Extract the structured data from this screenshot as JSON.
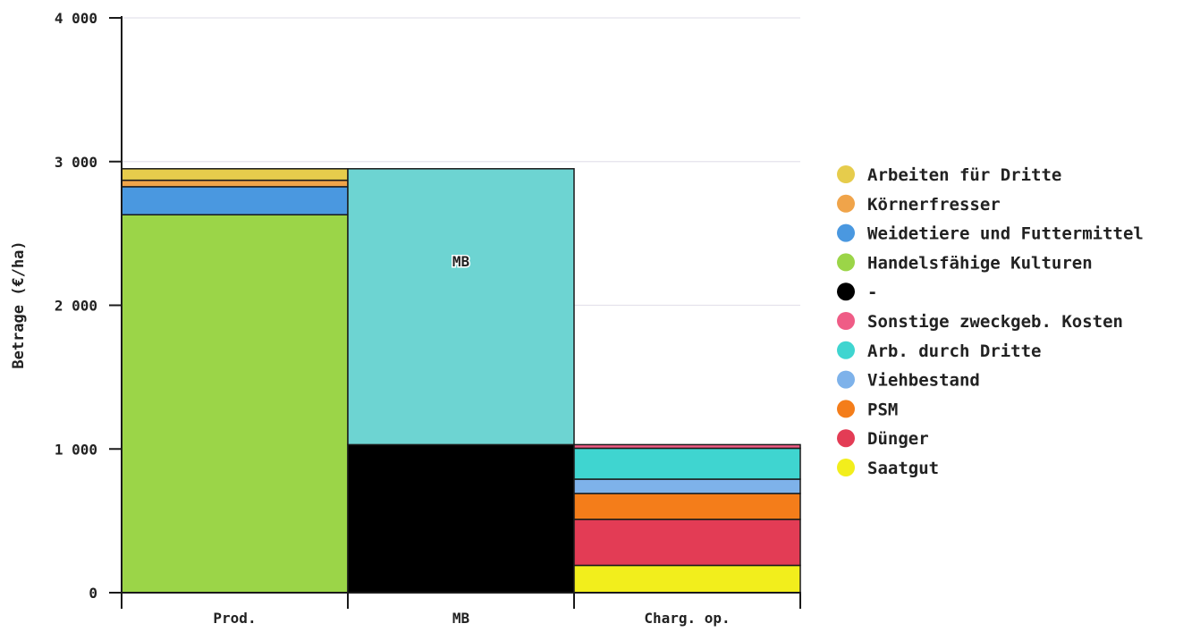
{
  "chart_data": {
    "type": "bar",
    "stacked": true,
    "ylabel": "Betrage (€/ha)",
    "ylim": [
      0,
      4000
    ],
    "yticks": [
      0,
      1000,
      2000,
      3000,
      4000
    ],
    "ytick_labels": [
      "0",
      "1 000",
      "2 000",
      "3 000",
      "4 000"
    ],
    "grid": true,
    "legend_position": "right",
    "categories": [
      "Prod.",
      "MB",
      "Charg. op."
    ],
    "series": [
      {
        "name": "Handelsfähige Kulturen",
        "color": "#9bd548",
        "values": [
          2630,
          0,
          0
        ]
      },
      {
        "name": "Weidetiere und Futtermittel",
        "color": "#4a98e0",
        "values": [
          195,
          0,
          0
        ]
      },
      {
        "name": "Körnerfresser",
        "color": "#f0a44a",
        "values": [
          45,
          0,
          0
        ]
      },
      {
        "name": "Arbeiten für Dritte",
        "color": "#e6cc4c",
        "values": [
          80,
          0,
          0
        ]
      },
      {
        "name": "-",
        "color": "#000000",
        "values": [
          0,
          1030,
          0
        ]
      },
      {
        "name": "",
        "color": "#6dd4d2",
        "values": [
          0,
          1920,
          0
        ],
        "label": "MB"
      },
      {
        "name": "Saatgut",
        "color": "#f2ee1c",
        "values": [
          0,
          0,
          190
        ]
      },
      {
        "name": "Dünger",
        "color": "#e33c55",
        "values": [
          0,
          0,
          320
        ]
      },
      {
        "name": "PSM",
        "color": "#f47d1a",
        "values": [
          0,
          0,
          180
        ]
      },
      {
        "name": "Viehbestand",
        "color": "#7eb2ea",
        "values": [
          0,
          0,
          100
        ]
      },
      {
        "name": "Arb. durch Dritte",
        "color": "#3fd5d0",
        "values": [
          0,
          0,
          215
        ]
      },
      {
        "name": "Sonstige zweckgeb. Kosten",
        "color": "#ef5c86",
        "values": [
          0,
          0,
          25
        ]
      }
    ],
    "legend": [
      {
        "label": "Arbeiten für Dritte",
        "color": "#e6cc4c"
      },
      {
        "label": "Körnerfresser",
        "color": "#f0a44a"
      },
      {
        "label": "Weidetiere und Futtermittel",
        "color": "#4a98e0"
      },
      {
        "label": "Handelsfähige Kulturen",
        "color": "#9bd548"
      },
      {
        "label": "-",
        "color": "#000000"
      },
      {
        "label": "Sonstige zweckgeb. Kosten",
        "color": "#ef5c86"
      },
      {
        "label": "Arb. durch Dritte",
        "color": "#3fd5d0"
      },
      {
        "label": "Viehbestand",
        "color": "#7eb2ea"
      },
      {
        "label": "PSM",
        "color": "#f47d1a"
      },
      {
        "label": "Dünger",
        "color": "#e33c55"
      },
      {
        "label": "Saatgut",
        "color": "#f2ee1c"
      }
    ]
  }
}
